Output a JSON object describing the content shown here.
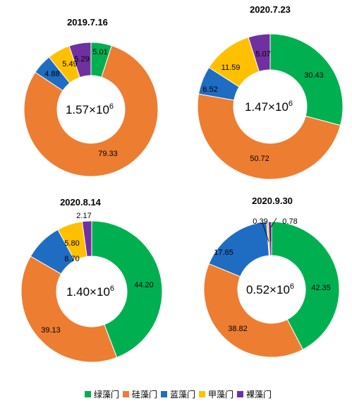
{
  "legend": {
    "items": [
      {
        "label": "绿藻门",
        "color": "#00B050"
      },
      {
        "label": "硅藻门",
        "color": "#ED7D31"
      },
      {
        "label": "蓝藻门",
        "color": "#1F6DC3"
      },
      {
        "label": "甲藻门",
        "color": "#FFC000"
      },
      {
        "label": "裸藻门",
        "color": "#7030A0"
      }
    ]
  },
  "chart_data": [
    {
      "type": "pie",
      "title": "2019.7.16",
      "center_label": {
        "base": "1.57×10",
        "exp": "6"
      },
      "slices": [
        {
          "category": "绿藻门",
          "value": 5.01
        },
        {
          "category": "硅藻门",
          "value": 79.33
        },
        {
          "category": "蓝藻门",
          "value": 4.88
        },
        {
          "category": "甲藻门",
          "value": 5.49
        },
        {
          "category": "裸藻门",
          "value": 5.29
        }
      ]
    },
    {
      "type": "pie",
      "title": "2020.7.23",
      "center_label": {
        "base": "1.47×10",
        "exp": "6"
      },
      "slices": [
        {
          "category": "绿藻门",
          "value": 30.43
        },
        {
          "category": "硅藻门",
          "value": 50.72
        },
        {
          "category": "蓝藻门",
          "value": 6.52
        },
        {
          "category": "甲藻门",
          "value": 11.59
        },
        {
          "category": "裸藻门",
          "value": 5.07
        }
      ]
    },
    {
      "type": "pie",
      "title": "2020.8.14",
      "center_label": {
        "base": "1.40×10",
        "exp": "6"
      },
      "slices": [
        {
          "category": "绿藻门",
          "value": 44.2
        },
        {
          "category": "硅藻门",
          "value": 39.13
        },
        {
          "category": "蓝藻门",
          "value": 8.7
        },
        {
          "category": "甲藻门",
          "value": 5.8
        },
        {
          "category": "裸藻门",
          "value": 2.17
        }
      ]
    },
    {
      "type": "pie",
      "title": "2020.9.30",
      "center_label": {
        "base": "0.52×10",
        "exp": "6"
      },
      "slices": [
        {
          "category": "绿藻门",
          "value": 42.35
        },
        {
          "category": "硅藻门",
          "value": 38.82
        },
        {
          "category": "蓝藻门",
          "value": 17.65
        },
        {
          "category": "甲藻门",
          "value": 0.39
        },
        {
          "category": "裸藻门",
          "value": 0.78
        }
      ]
    }
  ]
}
